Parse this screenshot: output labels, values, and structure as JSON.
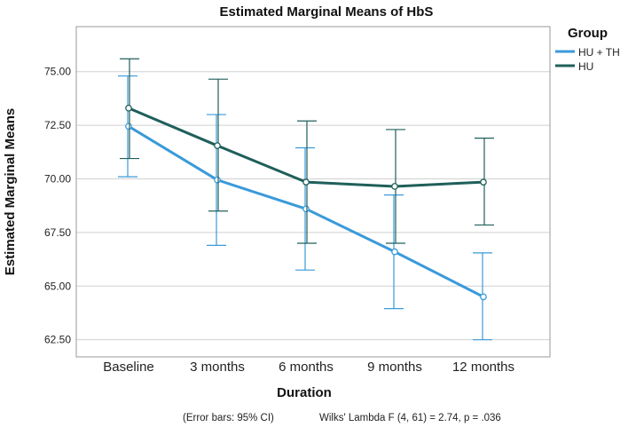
{
  "chart_data": {
    "type": "line",
    "title": "Estimated Marginal Means of HbS",
    "xlabel": "Duration",
    "ylabel": "Estimated Marginal Means",
    "categories": [
      "Baseline",
      "3 months",
      "6 months",
      "9 months",
      "12 months"
    ],
    "ylim": [
      61.7,
      77.1
    ],
    "yticks": [
      "62.50",
      "65.00",
      "67.50",
      "70.00",
      "72.50",
      "75.00"
    ],
    "grid": true,
    "legend": {
      "title": "Group",
      "position": "top-right"
    },
    "series": [
      {
        "name": "HU + TH",
        "color": "#3a9ad9",
        "values": [
          72.45,
          69.95,
          68.6,
          66.6,
          64.5
        ],
        "ci_lower": [
          70.1,
          66.9,
          65.75,
          63.95,
          62.5
        ],
        "ci_upper": [
          74.8,
          73.0,
          71.45,
          69.25,
          66.55
        ]
      },
      {
        "name": "HU",
        "color": "#1f5f5b",
        "values": [
          73.3,
          71.55,
          69.85,
          69.65,
          69.85
        ],
        "ci_lower": [
          70.95,
          68.5,
          67.0,
          67.0,
          67.85
        ],
        "ci_upper": [
          75.6,
          74.65,
          72.7,
          72.3,
          71.9
        ]
      }
    ],
    "annotations": {
      "error_bars_note": "(Error bars: 95% CI)",
      "stat_note": "Wilks' Lambda F (4, 61) = 2.74, p = .036"
    }
  }
}
